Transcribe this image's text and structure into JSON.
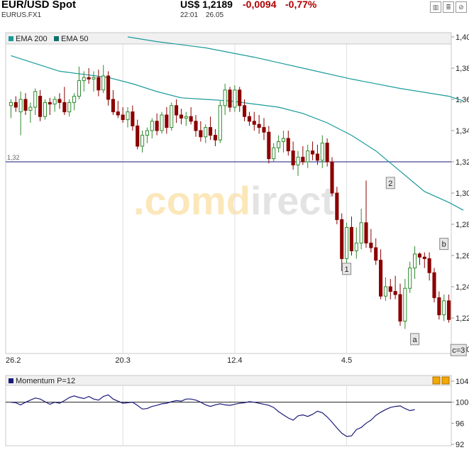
{
  "header": {
    "title": "EUR/USD Spot",
    "symbol": "EURUS.FX1",
    "price": "US$ 1,2189",
    "change": "-0,0094",
    "change_pct": "-0,77%",
    "time": "22:01",
    "date": "26.05"
  },
  "icons": [
    "chart-type-icon",
    "table-icon",
    "settings-icon"
  ],
  "watermark": ".comdirect",
  "colors": {
    "up": "#2e8b2e",
    "down": "#8b0000",
    "ema": "#1a9a9a",
    "momentum": "#1a1a7a",
    "hline": "#1a1a7a"
  },
  "chart_data": [
    {
      "type": "candlestick",
      "legend": [
        "EMA 200",
        "EMA 50"
      ],
      "x_tick_labels": [
        "26.2",
        "20.3",
        "12.4",
        "4.5"
      ],
      "y_ticks": [
        "1,40",
        "1,38",
        "1,36",
        "1,34",
        "1,32",
        "1,30",
        "1,28",
        "1,26",
        "1,24",
        "1,22",
        "1,20"
      ],
      "ylim": [
        1.2,
        1.4
      ],
      "reference_line": {
        "value": 1.32,
        "label": "1,32"
      },
      "wave_labels": [
        {
          "text": "1",
          "i": 69,
          "y": 1.251
        },
        {
          "text": "2",
          "i": 78,
          "y": 1.306
        },
        {
          "text": "a",
          "i": 83,
          "y": 1.206
        },
        {
          "text": "b",
          "i": 89,
          "y": 1.267
        },
        {
          "text": "c=3",
          "i": 92,
          "y": 1.199
        }
      ],
      "ema200": [
        [
          24,
          1.4
        ],
        [
          30,
          1.397
        ],
        [
          40,
          1.393
        ],
        [
          50,
          1.387
        ],
        [
          60,
          1.38
        ],
        [
          70,
          1.373
        ],
        [
          80,
          1.367
        ],
        [
          90,
          1.362
        ],
        [
          93,
          1.359
        ]
      ],
      "ema50": [
        [
          0,
          1.388
        ],
        [
          5,
          1.383
        ],
        [
          10,
          1.378
        ],
        [
          15,
          1.376
        ],
        [
          20,
          1.374
        ],
        [
          25,
          1.37
        ],
        [
          30,
          1.365
        ],
        [
          35,
          1.361
        ],
        [
          40,
          1.36
        ],
        [
          45,
          1.359
        ],
        [
          50,
          1.357
        ],
        [
          55,
          1.355
        ],
        [
          60,
          1.351
        ],
        [
          65,
          1.345
        ],
        [
          70,
          1.337
        ],
        [
          75,
          1.327
        ],
        [
          80,
          1.314
        ],
        [
          85,
          1.301
        ],
        [
          90,
          1.294
        ],
        [
          93,
          1.289
        ]
      ],
      "ohlc": [
        [
          1.356,
          1.36,
          1.348,
          1.358
        ],
        [
          1.358,
          1.362,
          1.352,
          1.355
        ],
        [
          1.352,
          1.365,
          1.337,
          1.36
        ],
        [
          1.36,
          1.364,
          1.35,
          1.353
        ],
        [
          1.353,
          1.358,
          1.345,
          1.355
        ],
        [
          1.355,
          1.367,
          1.35,
          1.365
        ],
        [
          1.362,
          1.366,
          1.346,
          1.349
        ],
        [
          1.349,
          1.36,
          1.347,
          1.358
        ],
        [
          1.358,
          1.361,
          1.35,
          1.357
        ],
        [
          1.357,
          1.362,
          1.352,
          1.36
        ],
        [
          1.36,
          1.364,
          1.354,
          1.358
        ],
        [
          1.358,
          1.368,
          1.35,
          1.352
        ],
        [
          1.352,
          1.36,
          1.349,
          1.358
        ],
        [
          1.358,
          1.364,
          1.353,
          1.362
        ],
        [
          1.362,
          1.381,
          1.36,
          1.372
        ],
        [
          1.372,
          1.378,
          1.365,
          1.374
        ],
        [
          1.374,
          1.38,
          1.37,
          1.373
        ],
        [
          1.373,
          1.378,
          1.365,
          1.374
        ],
        [
          1.374,
          1.379,
          1.362,
          1.366
        ],
        [
          1.366,
          1.382,
          1.364,
          1.375
        ],
        [
          1.375,
          1.378,
          1.356,
          1.36
        ],
        [
          1.36,
          1.366,
          1.35,
          1.352
        ],
        [
          1.352,
          1.359,
          1.348,
          1.35
        ],
        [
          1.35,
          1.355,
          1.345,
          1.347
        ],
        [
          1.347,
          1.355,
          1.342,
          1.352
        ],
        [
          1.352,
          1.356,
          1.34,
          1.343
        ],
        [
          1.343,
          1.347,
          1.328,
          1.33
        ],
        [
          1.33,
          1.34,
          1.326,
          1.337
        ],
        [
          1.337,
          1.342,
          1.332,
          1.34
        ],
        [
          1.34,
          1.348,
          1.335,
          1.346
        ],
        [
          1.346,
          1.351,
          1.337,
          1.34
        ],
        [
          1.34,
          1.352,
          1.338,
          1.35
        ],
        [
          1.35,
          1.355,
          1.338,
          1.342
        ],
        [
          1.342,
          1.358,
          1.34,
          1.356
        ],
        [
          1.356,
          1.36,
          1.345,
          1.35
        ],
        [
          1.35,
          1.354,
          1.344,
          1.348
        ],
        [
          1.348,
          1.352,
          1.343,
          1.349
        ],
        [
          1.349,
          1.355,
          1.344,
          1.346
        ],
        [
          1.346,
          1.35,
          1.336,
          1.34
        ],
        [
          1.34,
          1.346,
          1.333,
          1.336
        ],
        [
          1.336,
          1.344,
          1.332,
          1.342
        ],
        [
          1.342,
          1.349,
          1.334,
          1.337
        ],
        [
          1.337,
          1.341,
          1.33,
          1.334
        ],
        [
          1.334,
          1.359,
          1.332,
          1.356
        ],
        [
          1.356,
          1.37,
          1.35,
          1.366
        ],
        [
          1.366,
          1.368,
          1.352,
          1.355
        ],
        [
          1.355,
          1.369,
          1.352,
          1.366
        ],
        [
          1.366,
          1.368,
          1.352,
          1.356
        ],
        [
          1.356,
          1.36,
          1.346,
          1.349
        ],
        [
          1.349,
          1.352,
          1.343,
          1.346
        ],
        [
          1.346,
          1.352,
          1.34,
          1.344
        ],
        [
          1.344,
          1.35,
          1.338,
          1.342
        ],
        [
          1.342,
          1.348,
          1.334,
          1.339
        ],
        [
          1.339,
          1.343,
          1.319,
          1.322
        ],
        [
          1.322,
          1.332,
          1.32,
          1.329
        ],
        [
          1.329,
          1.337,
          1.326,
          1.333
        ],
        [
          1.333,
          1.34,
          1.326,
          1.335
        ],
        [
          1.335,
          1.34,
          1.324,
          1.327
        ],
        [
          1.327,
          1.333,
          1.315,
          1.318
        ],
        [
          1.318,
          1.327,
          1.311,
          1.323
        ],
        [
          1.323,
          1.33,
          1.318,
          1.32
        ],
        [
          1.32,
          1.331,
          1.316,
          1.327
        ],
        [
          1.327,
          1.333,
          1.321,
          1.325
        ],
        [
          1.325,
          1.331,
          1.318,
          1.321
        ],
        [
          1.321,
          1.337,
          1.316,
          1.332
        ],
        [
          1.332,
          1.335,
          1.317,
          1.32
        ],
        [
          1.32,
          1.323,
          1.298,
          1.3
        ],
        [
          1.3,
          1.304,
          1.28,
          1.283
        ],
        [
          1.283,
          1.287,
          1.25,
          1.258
        ],
        [
          1.258,
          1.281,
          1.255,
          1.278
        ],
        [
          1.278,
          1.285,
          1.26,
          1.263
        ],
        [
          1.263,
          1.278,
          1.258,
          1.268
        ],
        [
          1.268,
          1.29,
          1.264,
          1.281
        ],
        [
          1.281,
          1.308,
          1.265,
          1.268
        ],
        [
          1.268,
          1.277,
          1.262,
          1.265
        ],
        [
          1.265,
          1.271,
          1.254,
          1.257
        ],
        [
          1.257,
          1.264,
          1.232,
          1.234
        ],
        [
          1.234,
          1.246,
          1.231,
          1.24
        ],
        [
          1.24,
          1.245,
          1.232,
          1.237
        ],
        [
          1.237,
          1.247,
          1.232,
          1.235
        ],
        [
          1.235,
          1.242,
          1.215,
          1.218
        ],
        [
          1.218,
          1.245,
          1.213,
          1.239
        ],
        [
          1.239,
          1.256,
          1.236,
          1.252
        ],
        [
          1.252,
          1.266,
          1.245,
          1.261
        ],
        [
          1.261,
          1.262,
          1.254,
          1.259
        ],
        [
          1.259,
          1.262,
          1.252,
          1.258
        ],
        [
          1.258,
          1.262,
          1.244,
          1.249
        ],
        [
          1.249,
          1.252,
          1.23,
          1.233
        ],
        [
          1.233,
          1.237,
          1.219,
          1.222
        ],
        [
          1.222,
          1.235,
          1.218,
          1.231
        ],
        [
          1.231,
          1.235,
          1.217,
          1.219
        ]
      ]
    },
    {
      "type": "line",
      "legend": [
        "Momentum P=12"
      ],
      "y_ticks": [
        "104",
        "100",
        "96",
        "92"
      ],
      "ylim": [
        92,
        104
      ],
      "reference_line": {
        "value": 100
      },
      "values": [
        100.0,
        99.9,
        99.5,
        100.0,
        100.4,
        100.8,
        100.6,
        100.1,
        99.6,
        100.0,
        99.8,
        100.3,
        100.9,
        101.2,
        100.9,
        100.7,
        101.1,
        100.6,
        100.4,
        101.1,
        101.4,
        100.6,
        100.2,
        99.8,
        99.9,
        100.0,
        99.4,
        98.7,
        98.8,
        99.2,
        99.4,
        99.7,
        99.8,
        100.1,
        100.3,
        100.2,
        100.6,
        100.6,
        100.4,
        100.0,
        99.5,
        99.2,
        99.5,
        99.7,
        99.5,
        99.4,
        99.6,
        99.8,
        99.9,
        100.1,
        100.0,
        99.8,
        99.6,
        99.4,
        99.0,
        98.2,
        97.6,
        97.0,
        96.6,
        97.4,
        97.6,
        97.3,
        97.7,
        98.3,
        98.0,
        97.2,
        96.2,
        95.1,
        94.1,
        93.5,
        93.6,
        94.8,
        95.2,
        96.0,
        96.6,
        97.5,
        98.1,
        98.6,
        99.0,
        99.2,
        99.3,
        98.8,
        98.4,
        98.6
      ]
    }
  ]
}
